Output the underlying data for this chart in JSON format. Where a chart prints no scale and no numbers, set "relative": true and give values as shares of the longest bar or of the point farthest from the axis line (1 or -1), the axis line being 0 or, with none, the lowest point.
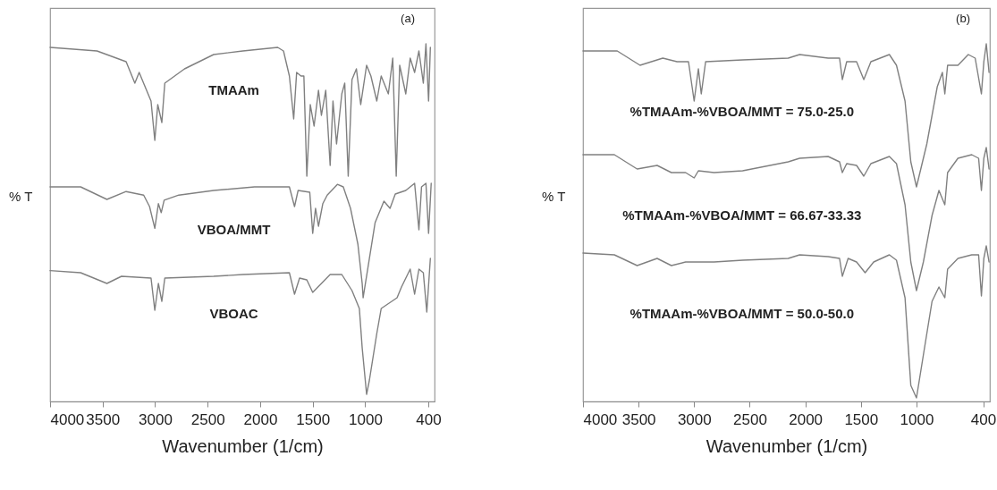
{
  "chart_data": [
    {
      "type": "line",
      "relative": true,
      "xlabel": "Wavenumber (1/cm)",
      "ylabel": "% T",
      "xlim": [
        4000,
        340
      ],
      "xticks": [
        4000,
        3500,
        3000,
        2500,
        2000,
        1500,
        1000,
        400
      ],
      "annotations": [
        "(a)"
      ],
      "series": [
        {
          "name": "TMAAm",
          "color": "#808080",
          "x": [
            4000,
            3553,
            3276,
            3193,
            3152,
            3039,
            3003,
            2975,
            2936,
            2908,
            2720,
            2443,
            2165,
            1833,
            1778,
            1722,
            1681,
            1653,
            1612,
            1584,
            1556,
            1523,
            1487,
            1445,
            1417,
            1376,
            1334,
            1307,
            1273,
            1223,
            1195,
            1162,
            1126,
            1084,
            1043,
            987,
            946,
            890,
            848,
            780,
            738,
            705,
            672,
            614,
            572,
            530,
            489,
            447,
            422,
            397,
            380
          ],
          "values": [
            0.99,
            0.98,
            0.95,
            0.89,
            0.92,
            0.84,
            0.73,
            0.83,
            0.78,
            0.89,
            0.93,
            0.97,
            0.98,
            0.99,
            0.98,
            0.91,
            0.79,
            0.92,
            0.91,
            0.91,
            0.63,
            0.83,
            0.77,
            0.87,
            0.8,
            0.87,
            0.66,
            0.84,
            0.72,
            0.86,
            0.89,
            0.63,
            0.9,
            0.93,
            0.83,
            0.94,
            0.91,
            0.84,
            0.91,
            0.86,
            0.96,
            0.63,
            0.94,
            0.86,
            0.96,
            0.92,
            0.98,
            0.89,
            1.0,
            0.84,
            0.99
          ]
        },
        {
          "name": "VBOA/MMT",
          "color": "#808080",
          "x": [
            4000,
            3709,
            3459,
            3276,
            3109,
            3053,
            3003,
            2969,
            2942,
            2914,
            2775,
            2443,
            2054,
            1722,
            1673,
            1639,
            1528,
            1500,
            1473,
            1445,
            1404,
            1362,
            1265,
            1209,
            1140,
            1070,
            1029,
            1020,
            906,
            822,
            764,
            714,
            614,
            530,
            489,
            464,
            422,
            397,
            372
          ],
          "values": [
            0.6,
            0.6,
            0.565,
            0.587,
            0.577,
            0.545,
            0.484,
            0.553,
            0.528,
            0.563,
            0.577,
            0.59,
            0.6,
            0.6,
            0.545,
            0.59,
            0.585,
            0.47,
            0.54,
            0.49,
            0.553,
            0.577,
            0.607,
            0.6,
            0.54,
            0.44,
            0.33,
            0.29,
            0.5,
            0.56,
            0.54,
            0.58,
            0.59,
            0.61,
            0.48,
            0.6,
            0.61,
            0.47,
            0.61
          ]
        },
        {
          "name": "VBOAC",
          "color": "#808080",
          "x": [
            4000,
            3709,
            3459,
            3320,
            3039,
            3003,
            2969,
            2936,
            2908,
            2443,
            2165,
            1722,
            1673,
            1625,
            1556,
            1500,
            1334,
            1223,
            1126,
            1056,
            1029,
            987,
            960,
            890,
            848,
            697,
            655,
            572,
            530,
            489,
            447,
            414,
            380
          ],
          "values": [
            0.366,
            0.36,
            0.33,
            0.35,
            0.345,
            0.255,
            0.33,
            0.28,
            0.345,
            0.35,
            0.355,
            0.36,
            0.3,
            0.345,
            0.34,
            0.305,
            0.355,
            0.355,
            0.31,
            0.26,
            0.15,
            0.02,
            0.06,
            0.19,
            0.26,
            0.29,
            0.32,
            0.37,
            0.3,
            0.37,
            0.36,
            0.25,
            0.4
          ]
        }
      ]
    },
    {
      "type": "line",
      "relative": true,
      "xlabel": "Wavenumber (1/cm)",
      "ylabel": "% T",
      "xlim": [
        4000,
        340
      ],
      "xticks": [
        4000,
        3500,
        3000,
        2500,
        2000,
        1500,
        1000,
        400
      ],
      "annotations": [
        "(b)"
      ],
      "series": [
        {
          "name": "%TMAAm-%VBOA/MMT = 75.0-25.0",
          "color": "#808080",
          "x": [
            4000,
            3692,
            3487,
            3282,
            3154,
            3051,
            3000,
            2962,
            2936,
            2897,
            2564,
            2154,
            2051,
            1795,
            1692,
            1667,
            1628,
            1539,
            1474,
            1410,
            1244,
            1180,
            1103,
            1051,
            1000,
            907,
            813,
            767,
            745,
            720,
            627,
            534,
            472,
            416,
            394,
            372,
            347
          ],
          "values": [
            0.98,
            0.98,
            0.94,
            0.96,
            0.95,
            0.95,
            0.84,
            0.93,
            0.86,
            0.95,
            0.955,
            0.96,
            0.97,
            0.96,
            0.96,
            0.9,
            0.95,
            0.95,
            0.9,
            0.95,
            0.97,
            0.94,
            0.84,
            0.67,
            0.6,
            0.72,
            0.88,
            0.92,
            0.86,
            0.94,
            0.94,
            0.97,
            0.96,
            0.86,
            0.95,
            1.0,
            0.92
          ]
        },
        {
          "name": "%TMAAm-%VBOA/MMT = 66.67-33.33",
          "color": "#808080",
          "x": [
            4000,
            3718,
            3513,
            3333,
            3205,
            3077,
            3000,
            2962,
            2821,
            2564,
            2154,
            2051,
            1795,
            1692,
            1667,
            1628,
            1539,
            1474,
            1410,
            1244,
            1180,
            1103,
            1051,
            1000,
            938,
            860,
            798,
            745,
            720,
            627,
            503,
            441,
            416,
            394,
            372,
            347
          ],
          "values": [
            0.69,
            0.69,
            0.65,
            0.66,
            0.64,
            0.64,
            0.625,
            0.645,
            0.64,
            0.645,
            0.67,
            0.68,
            0.685,
            0.67,
            0.64,
            0.665,
            0.66,
            0.63,
            0.665,
            0.685,
            0.665,
            0.55,
            0.39,
            0.31,
            0.39,
            0.52,
            0.59,
            0.55,
            0.64,
            0.68,
            0.69,
            0.68,
            0.59,
            0.68,
            0.71,
            0.65
          ]
        },
        {
          "name": "%TMAAm-%VBOA/MMT = 50.0-50.0",
          "color": "#808080",
          "x": [
            4000,
            3718,
            3513,
            3333,
            3205,
            3077,
            2821,
            2564,
            2154,
            2051,
            1795,
            1692,
            1667,
            1615,
            1539,
            1462,
            1385,
            1244,
            1180,
            1103,
            1051,
            1000,
            938,
            860,
            798,
            745,
            720,
            627,
            503,
            441,
            416,
            394,
            372,
            347
          ],
          "values": [
            0.415,
            0.41,
            0.38,
            0.4,
            0.38,
            0.39,
            0.39,
            0.395,
            0.4,
            0.41,
            0.405,
            0.4,
            0.35,
            0.4,
            0.39,
            0.36,
            0.39,
            0.41,
            0.395,
            0.29,
            0.045,
            0.01,
            0.13,
            0.28,
            0.32,
            0.29,
            0.37,
            0.4,
            0.41,
            0.41,
            0.295,
            0.4,
            0.435,
            0.39
          ]
        }
      ]
    }
  ]
}
